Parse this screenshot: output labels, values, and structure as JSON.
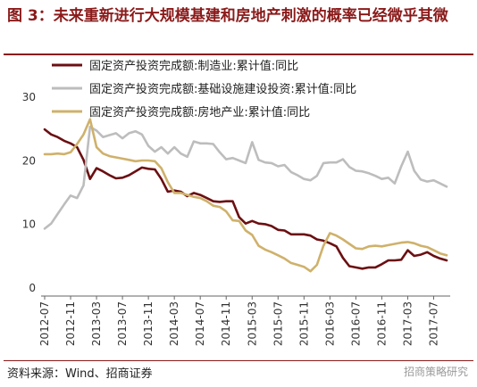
{
  "title": "图 3：未来重新进行大规模基建和房地产刺激的概率已经微乎其微",
  "source": "资料来源：Wind、招商证券",
  "watermark": "招商策略研究",
  "chart_data": {
    "type": "line",
    "title": "图 3：未来重新进行大规模基建和房地产刺激的概率已经微乎其微",
    "xlabel": "",
    "ylabel": "",
    "ylim": [
      0,
      30
    ],
    "yticks": [
      0,
      10,
      20,
      30
    ],
    "grid": false,
    "legend_position": "top",
    "x_tick_labels": [
      "2012-07",
      "2012-11",
      "2013-03",
      "2013-07",
      "2013-11",
      "2014-03",
      "2014-07",
      "2014-11",
      "2015-03",
      "2015-07",
      "2015-11",
      "2016-03",
      "2016-07",
      "2016-11",
      "2017-03",
      "2017-07"
    ],
    "x": [
      "2012-07",
      "2012-08",
      "2012-09",
      "2012-10",
      "2012-11",
      "2012-12",
      "2013-01",
      "2013-02",
      "2013-03",
      "2013-04",
      "2013-05",
      "2013-06",
      "2013-07",
      "2013-08",
      "2013-09",
      "2013-10",
      "2013-11",
      "2013-12",
      "2014-01",
      "2014-02",
      "2014-03",
      "2014-04",
      "2014-05",
      "2014-06",
      "2014-07",
      "2014-08",
      "2014-09",
      "2014-10",
      "2014-11",
      "2014-12",
      "2015-01",
      "2015-02",
      "2015-03",
      "2015-04",
      "2015-05",
      "2015-06",
      "2015-07",
      "2015-08",
      "2015-09",
      "2015-10",
      "2015-11",
      "2015-12",
      "2016-01",
      "2016-02",
      "2016-03",
      "2016-04",
      "2016-05",
      "2016-06",
      "2016-07",
      "2016-08",
      "2016-09",
      "2016-10",
      "2016-11",
      "2016-12",
      "2017-01",
      "2017-02",
      "2017-03",
      "2017-04",
      "2017-05",
      "2017-06",
      "2017-07",
      "2017-08",
      "2017-09"
    ],
    "series": [
      {
        "name": "固定资产投资完成额:制造业:累计值:同比",
        "color": "#6B0F12",
        "values": [
          24.8,
          24.0,
          23.6,
          23.0,
          22.6,
          22.0,
          20.0,
          17.0,
          18.7,
          18.2,
          17.6,
          17.1,
          17.2,
          17.6,
          18.2,
          18.8,
          18.6,
          18.5,
          17.0,
          15.0,
          15.2,
          15.0,
          14.3,
          14.8,
          14.5,
          14.0,
          13.5,
          13.4,
          13.5,
          13.5,
          11.0,
          10.0,
          10.4,
          10.0,
          9.9,
          9.6,
          9.0,
          8.9,
          8.3,
          8.3,
          8.3,
          8.1,
          7.5,
          7.3,
          6.9,
          6.4,
          4.6,
          3.3,
          3.1,
          2.9,
          3.1,
          3.1,
          3.6,
          4.2,
          4.2,
          4.3,
          5.8,
          4.9,
          5.1,
          5.5,
          4.9,
          4.5,
          4.2
        ]
      },
      {
        "name": "固定资产投资完成额:基础设施建设投资:累计值:同比",
        "color": "#BDBDBD",
        "values": [
          9.2,
          10.0,
          11.5,
          13.0,
          14.4,
          14.0,
          16.0,
          25.2,
          24.6,
          23.6,
          23.9,
          24.2,
          23.4,
          24.2,
          24.5,
          24.0,
          22.2,
          21.3,
          22.0,
          21.0,
          22.0,
          21.0,
          20.5,
          22.9,
          22.6,
          22.6,
          22.5,
          21.2,
          20.1,
          20.3,
          19.9,
          19.5,
          22.8,
          20.0,
          19.6,
          19.5,
          19.0,
          19.2,
          18.1,
          17.6,
          17.0,
          16.8,
          17.5,
          19.5,
          19.6,
          19.6,
          20.1,
          18.9,
          18.3,
          18.2,
          17.9,
          17.5,
          17.0,
          17.2,
          16.3,
          19.0,
          21.3,
          18.3,
          16.9,
          16.6,
          16.8,
          16.3,
          15.8
        ]
      },
      {
        "name": "固定资产投资完成额:房地产业:累计值:同比",
        "color": "#CFB16B",
        "values": [
          20.9,
          20.9,
          21.0,
          20.9,
          21.2,
          22.5,
          24.0,
          26.4,
          22.0,
          21.0,
          20.6,
          20.4,
          20.2,
          20.0,
          19.8,
          19.9,
          19.9,
          19.8,
          18.7,
          16.5,
          14.8,
          14.8,
          14.5,
          14.2,
          14.0,
          13.5,
          12.8,
          12.6,
          11.9,
          10.5,
          10.4,
          8.9,
          8.2,
          6.5,
          5.9,
          5.5,
          5.0,
          4.5,
          3.8,
          3.5,
          3.2,
          2.5,
          3.5,
          6.5,
          8.5,
          8.1,
          7.5,
          6.8,
          6.1,
          6.0,
          6.4,
          6.5,
          6.4,
          6.6,
          6.8,
          7.0,
          7.1,
          6.9,
          6.5,
          6.3,
          5.8,
          5.3,
          5.0
        ]
      }
    ]
  }
}
